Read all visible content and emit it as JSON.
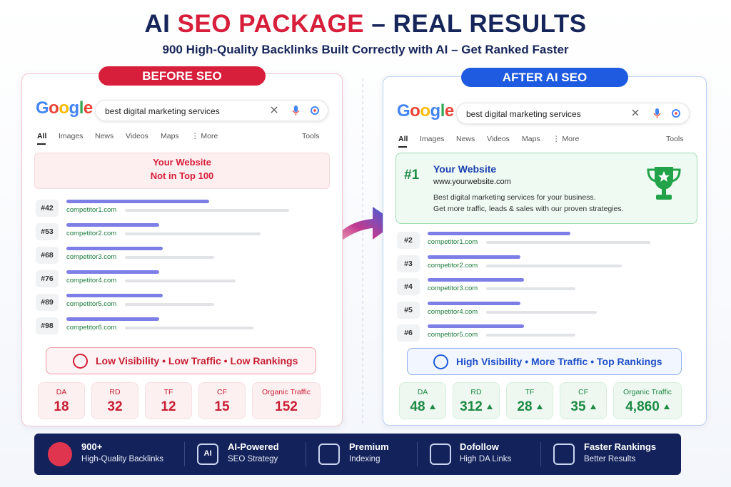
{
  "header": {
    "title_parts": [
      "AI ",
      "SEO PACKAGE",
      " – REAL RESULTS"
    ],
    "subtitle": "900 High-Quality Backlinks Built Correctly with AI – Get Ranked Faster"
  },
  "before": {
    "label": "BEFORE SEO",
    "logo": "Google",
    "query": "best digital marketing services",
    "tabs": [
      "All",
      "Images",
      "News",
      "Videos",
      "Maps",
      "⋮ More"
    ],
    "tools": "Tools",
    "notice": [
      "Your Website",
      "Not in Top 100"
    ],
    "results": [
      {
        "rank": "#42",
        "site": "competitor1.com"
      },
      {
        "rank": "#53",
        "site": "competitor2.com"
      },
      {
        "rank": "#68",
        "site": "competitor3.com"
      },
      {
        "rank": "#76",
        "site": "competitor4.com"
      },
      {
        "rank": "#89",
        "site": "competitor5.com"
      },
      {
        "rank": "#98",
        "site": "competitor6.com"
      }
    ],
    "verdict": "Low Visibility • Low Traffic • Low Rankings",
    "metrics": [
      {
        "label": "DA",
        "value": "18"
      },
      {
        "label": "RD",
        "value": "32"
      },
      {
        "label": "TF",
        "value": "12"
      },
      {
        "label": "CF",
        "value": "15"
      },
      {
        "label": "Organic Traffic",
        "value": "152"
      }
    ]
  },
  "after": {
    "label": "AFTER AI SEO",
    "logo": "Google",
    "query": "best digital marketing services",
    "tabs": [
      "All",
      "Images",
      "News",
      "Videos",
      "Maps",
      "⋮ More"
    ],
    "tools": "Tools",
    "top_result": {
      "rank": "#1",
      "title": "Your Website",
      "url": "www.yourwebsite.com",
      "description": [
        "Best digital marketing services for your business.",
        "Get more traffic, leads & sales with our proven strategies."
      ]
    },
    "results": [
      {
        "rank": "#2",
        "site": "competitor1.com"
      },
      {
        "rank": "#3",
        "site": "competitor2.com"
      },
      {
        "rank": "#4",
        "site": "competitor3.com"
      },
      {
        "rank": "#5",
        "site": "competitor4.com"
      },
      {
        "rank": "#6",
        "site": "competitor5.com"
      }
    ],
    "verdict": "High Visibility • More Traffic • Top Rankings",
    "metrics": [
      {
        "label": "DA",
        "value": "48"
      },
      {
        "label": "RD",
        "value": "312"
      },
      {
        "label": "TF",
        "value": "28"
      },
      {
        "label": "CF",
        "value": "35"
      },
      {
        "label": "Organic Traffic",
        "value": "4,860"
      }
    ]
  },
  "features": [
    {
      "title": "900+",
      "subtitle": "High-Quality Backlinks"
    },
    {
      "title": "AI-Powered",
      "subtitle": "SEO Strategy",
      "icon_label": "AI"
    },
    {
      "title": "Premium",
      "subtitle": "Indexing"
    },
    {
      "title": "Dofollow",
      "subtitle": "High DA Links"
    },
    {
      "title": "Faster Rankings",
      "subtitle": "Better Results"
    }
  ]
}
